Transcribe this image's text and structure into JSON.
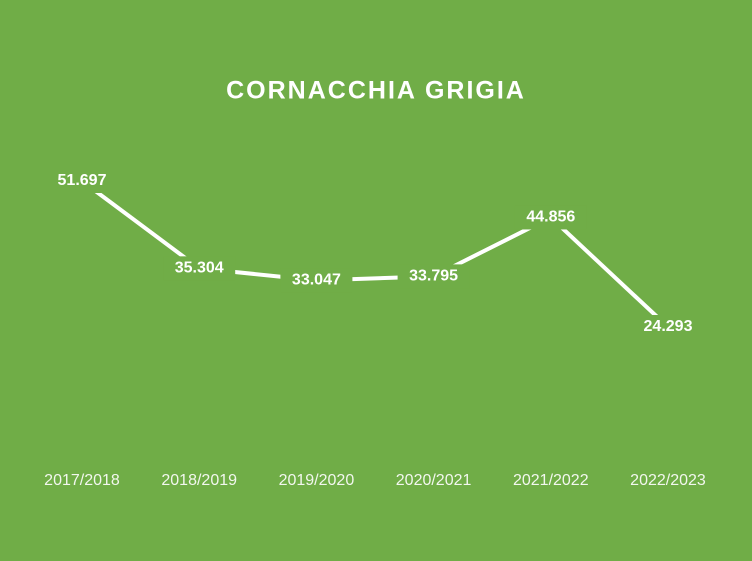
{
  "chart_data": {
    "type": "line",
    "title": "CORNACCHIA GRIGIA",
    "categories": [
      "2017/2018",
      "2018/2019",
      "2019/2020",
      "2020/2021",
      "2021/2022",
      "2022/2023"
    ],
    "values": [
      51697,
      35304,
      33047,
      33795,
      44856,
      24293
    ],
    "value_labels": [
      "51.697",
      "35.304",
      "33.047",
      "33.795",
      "44.856",
      "24.293"
    ],
    "color": "#ffffff",
    "background": "#70ad47"
  }
}
